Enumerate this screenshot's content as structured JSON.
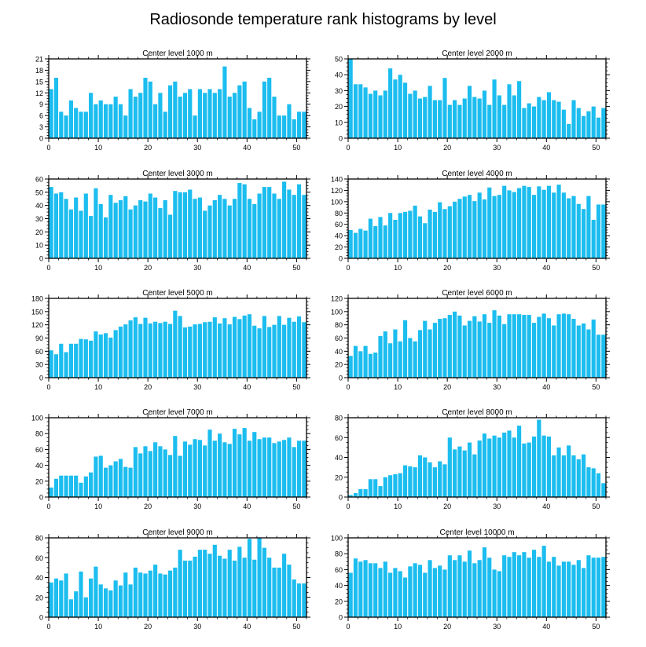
{
  "title": "Radiosonde temperature rank histograms by level",
  "bar_color": "#1cbdef",
  "chart_data": [
    {
      "type": "bar",
      "title": "Center level 1000 m",
      "x": [
        0,
        1,
        2,
        3,
        4,
        5,
        6,
        7,
        8,
        9,
        10,
        11,
        12,
        13,
        14,
        15,
        16,
        17,
        18,
        19,
        20,
        21,
        22,
        23,
        24,
        25,
        26,
        27,
        28,
        29,
        30,
        31,
        32,
        33,
        34,
        35,
        36,
        37,
        38,
        39,
        40,
        41,
        42,
        43,
        44,
        45,
        46,
        47,
        48,
        49,
        50,
        51
      ],
      "values": [
        13,
        16,
        7,
        6,
        10,
        8,
        7,
        7,
        12,
        9,
        10,
        9,
        9,
        11,
        9,
        6,
        13,
        11,
        12,
        16,
        15,
        9,
        12,
        7,
        14,
        15,
        11,
        12,
        13,
        6,
        13,
        12,
        13,
        12,
        13,
        19,
        11,
        12,
        14,
        15,
        8,
        5,
        7,
        15,
        16,
        11,
        6,
        6,
        9,
        5,
        7,
        7
      ],
      "xlim": [
        0,
        52
      ],
      "ylim": [
        0,
        21
      ],
      "yticks": [
        0,
        3,
        6,
        9,
        12,
        15,
        18,
        21
      ],
      "xticks": [
        0,
        10,
        20,
        30,
        40,
        50
      ],
      "xlabel": "",
      "ylabel": ""
    },
    {
      "type": "bar",
      "title": "Center level 2000 m",
      "x": [
        0,
        1,
        2,
        3,
        4,
        5,
        6,
        7,
        8,
        9,
        10,
        11,
        12,
        13,
        14,
        15,
        16,
        17,
        18,
        19,
        20,
        21,
        22,
        23,
        24,
        25,
        26,
        27,
        28,
        29,
        30,
        31,
        32,
        33,
        34,
        35,
        36,
        37,
        38,
        39,
        40,
        41,
        42,
        43,
        44,
        45,
        46,
        47,
        48,
        49,
        50,
        51
      ],
      "values": [
        50,
        34,
        34,
        32,
        28,
        30,
        27,
        30,
        44,
        37,
        40,
        35,
        28,
        30,
        25,
        26,
        33,
        24,
        24,
        38,
        21,
        24,
        21,
        25,
        33,
        26,
        25,
        30,
        21,
        37,
        27,
        21,
        34,
        27,
        36,
        19,
        22,
        20,
        26,
        24,
        29,
        24,
        23,
        18,
        9,
        24,
        19,
        14,
        17,
        20,
        13,
        19
      ],
      "xlim": [
        0,
        52
      ],
      "ylim": [
        0,
        50
      ],
      "yticks": [
        0,
        10,
        20,
        30,
        40,
        50
      ],
      "xticks": [
        0,
        10,
        20,
        30,
        40,
        50
      ],
      "xlabel": "",
      "ylabel": ""
    },
    {
      "type": "bar",
      "title": "Center level 3000 m",
      "x": [
        0,
        1,
        2,
        3,
        4,
        5,
        6,
        7,
        8,
        9,
        10,
        11,
        12,
        13,
        14,
        15,
        16,
        17,
        18,
        19,
        20,
        21,
        22,
        23,
        24,
        25,
        26,
        27,
        28,
        29,
        30,
        31,
        32,
        33,
        34,
        35,
        36,
        37,
        38,
        39,
        40,
        41,
        42,
        43,
        44,
        45,
        46,
        47,
        48,
        49,
        50,
        51
      ],
      "values": [
        54,
        49,
        50,
        45,
        37,
        46,
        36,
        49,
        32,
        53,
        41,
        31,
        48,
        42,
        44,
        47,
        37,
        40,
        44,
        43,
        49,
        46,
        38,
        44,
        33,
        51,
        50,
        50,
        52,
        45,
        46,
        36,
        40,
        44,
        48,
        45,
        40,
        45,
        57,
        56,
        45,
        41,
        49,
        54,
        54,
        49,
        45,
        58,
        52,
        48,
        56,
        48
      ],
      "xlim": [
        0,
        52
      ],
      "ylim": [
        0,
        60
      ],
      "yticks": [
        0,
        10,
        20,
        30,
        40,
        50,
        60
      ],
      "xticks": [
        0,
        10,
        20,
        30,
        40,
        50
      ],
      "xlabel": "",
      "ylabel": ""
    },
    {
      "type": "bar",
      "title": "Center level 4000 m",
      "x": [
        0,
        1,
        2,
        3,
        4,
        5,
        6,
        7,
        8,
        9,
        10,
        11,
        12,
        13,
        14,
        15,
        16,
        17,
        18,
        19,
        20,
        21,
        22,
        23,
        24,
        25,
        26,
        27,
        28,
        29,
        30,
        31,
        32,
        33,
        34,
        35,
        36,
        37,
        38,
        39,
        40,
        41,
        42,
        43,
        44,
        45,
        46,
        47,
        48,
        49,
        50,
        51
      ],
      "values": [
        50,
        45,
        52,
        49,
        70,
        57,
        73,
        58,
        80,
        68,
        80,
        82,
        84,
        93,
        74,
        62,
        86,
        82,
        99,
        87,
        92,
        100,
        105,
        109,
        112,
        101,
        116,
        104,
        125,
        110,
        112,
        128,
        120,
        117,
        124,
        128,
        126,
        112,
        127,
        121,
        128,
        116,
        130,
        116,
        106,
        110,
        96,
        87,
        110,
        68,
        95,
        95
      ],
      "xlim": [
        0,
        52
      ],
      "ylim": [
        0,
        140
      ],
      "yticks": [
        0,
        20,
        40,
        60,
        80,
        100,
        120,
        140
      ],
      "xticks": [
        0,
        10,
        20,
        30,
        40,
        50
      ],
      "xlabel": "",
      "ylabel": ""
    },
    {
      "type": "bar",
      "title": "Center level 5000 m",
      "x": [
        0,
        1,
        2,
        3,
        4,
        5,
        6,
        7,
        8,
        9,
        10,
        11,
        12,
        13,
        14,
        15,
        16,
        17,
        18,
        19,
        20,
        21,
        22,
        23,
        24,
        25,
        26,
        27,
        28,
        29,
        30,
        31,
        32,
        33,
        34,
        35,
        36,
        37,
        38,
        39,
        40,
        41,
        42,
        43,
        44,
        45,
        46,
        47,
        48,
        49,
        50,
        51
      ],
      "values": [
        62,
        53,
        77,
        58,
        77,
        77,
        88,
        87,
        84,
        105,
        98,
        101,
        91,
        108,
        116,
        121,
        130,
        137,
        122,
        136,
        123,
        127,
        124,
        127,
        122,
        152,
        140,
        114,
        116,
        121,
        122,
        126,
        127,
        137,
        123,
        135,
        121,
        138,
        133,
        141,
        144,
        118,
        112,
        140,
        115,
        120,
        140,
        120,
        136,
        127,
        139,
        126
      ],
      "xlim": [
        0,
        52
      ],
      "ylim": [
        0,
        180
      ],
      "yticks": [
        0,
        30,
        60,
        90,
        120,
        150,
        180
      ],
      "xticks": [
        0,
        10,
        20,
        30,
        40,
        50
      ],
      "xlabel": "",
      "ylabel": ""
    },
    {
      "type": "bar",
      "title": "Center level 6000 m",
      "x": [
        0,
        1,
        2,
        3,
        4,
        5,
        6,
        7,
        8,
        9,
        10,
        11,
        12,
        13,
        14,
        15,
        16,
        17,
        18,
        19,
        20,
        21,
        22,
        23,
        24,
        25,
        26,
        27,
        28,
        29,
        30,
        31,
        32,
        33,
        34,
        35,
        36,
        37,
        38,
        39,
        40,
        41,
        42,
        43,
        44,
        45,
        46,
        47,
        48,
        49,
        50,
        51
      ],
      "values": [
        33,
        48,
        40,
        48,
        36,
        38,
        63,
        70,
        52,
        73,
        55,
        87,
        60,
        55,
        72,
        86,
        73,
        83,
        89,
        90,
        95,
        100,
        94,
        79,
        86,
        93,
        85,
        96,
        83,
        102,
        94,
        81,
        96,
        96,
        96,
        95,
        95,
        83,
        92,
        97,
        90,
        79,
        96,
        97,
        96,
        89,
        79,
        82,
        73,
        88,
        65,
        65
      ],
      "xlim": [
        0,
        52
      ],
      "ylim": [
        0,
        120
      ],
      "yticks": [
        0,
        20,
        40,
        60,
        80,
        100,
        120
      ],
      "xticks": [
        0,
        10,
        20,
        30,
        40,
        50
      ],
      "xlabel": "",
      "ylabel": ""
    },
    {
      "type": "bar",
      "title": "Center level 7000 m",
      "x": [
        0,
        1,
        2,
        3,
        4,
        5,
        6,
        7,
        8,
        9,
        10,
        11,
        12,
        13,
        14,
        15,
        16,
        17,
        18,
        19,
        20,
        21,
        22,
        23,
        24,
        25,
        26,
        27,
        28,
        29,
        30,
        31,
        32,
        33,
        34,
        35,
        36,
        37,
        38,
        39,
        40,
        41,
        42,
        43,
        44,
        45,
        46,
        47,
        48,
        49,
        50,
        51
      ],
      "values": [
        12,
        23,
        27,
        27,
        27,
        27,
        18,
        26,
        31,
        51,
        52,
        37,
        40,
        45,
        48,
        38,
        37,
        63,
        55,
        64,
        58,
        69,
        64,
        60,
        53,
        77,
        52,
        70,
        66,
        73,
        72,
        65,
        85,
        71,
        80,
        69,
        67,
        86,
        79,
        87,
        71,
        82,
        73,
        75,
        75,
        68,
        70,
        72,
        75,
        63,
        71,
        71
      ],
      "xlim": [
        0,
        52
      ],
      "ylim": [
        0,
        100
      ],
      "yticks": [
        0,
        20,
        40,
        60,
        80,
        100
      ],
      "xticks": [
        0,
        10,
        20,
        30,
        40,
        50
      ],
      "xlabel": "",
      "ylabel": ""
    },
    {
      "type": "bar",
      "title": "Center level 8000 m",
      "x": [
        0,
        1,
        2,
        3,
        4,
        5,
        6,
        7,
        8,
        9,
        10,
        11,
        12,
        13,
        14,
        15,
        16,
        17,
        18,
        19,
        20,
        21,
        22,
        23,
        24,
        25,
        26,
        27,
        28,
        29,
        30,
        31,
        32,
        33,
        34,
        35,
        36,
        37,
        38,
        39,
        40,
        41,
        42,
        43,
        44,
        45,
        46,
        47,
        48,
        49,
        50,
        51
      ],
      "values": [
        2,
        4,
        8,
        8,
        18,
        18,
        11,
        20,
        22,
        23,
        24,
        32,
        31,
        30,
        42,
        40,
        35,
        30,
        36,
        33,
        60,
        48,
        51,
        47,
        55,
        43,
        57,
        64,
        59,
        62,
        60,
        65,
        67,
        60,
        72,
        54,
        55,
        61,
        78,
        62,
        61,
        42,
        50,
        42,
        52,
        42,
        38,
        43,
        30,
        29,
        24,
        14
      ],
      "xlim": [
        0,
        52
      ],
      "ylim": [
        0,
        80
      ],
      "yticks": [
        0,
        20,
        40,
        60,
        80
      ],
      "xticks": [
        0,
        10,
        20,
        30,
        40,
        50
      ],
      "xlabel": "",
      "ylabel": ""
    },
    {
      "type": "bar",
      "title": "Center level 9000 m",
      "x": [
        0,
        1,
        2,
        3,
        4,
        5,
        6,
        7,
        8,
        9,
        10,
        11,
        12,
        13,
        14,
        15,
        16,
        17,
        18,
        19,
        20,
        21,
        22,
        23,
        24,
        25,
        26,
        27,
        28,
        29,
        30,
        31,
        32,
        33,
        34,
        35,
        36,
        37,
        38,
        39,
        40,
        41,
        42,
        43,
        44,
        45,
        46,
        47,
        48,
        49,
        50,
        51
      ],
      "values": [
        35,
        39,
        37,
        44,
        18,
        26,
        46,
        20,
        39,
        51,
        33,
        29,
        27,
        37,
        32,
        45,
        33,
        50,
        45,
        44,
        47,
        53,
        44,
        43,
        47,
        50,
        68,
        57,
        57,
        61,
        68,
        68,
        64,
        73,
        62,
        59,
        68,
        57,
        71,
        60,
        79,
        58,
        80,
        70,
        60,
        50,
        50,
        64,
        53,
        38,
        34,
        34
      ],
      "xlim": [
        0,
        52
      ],
      "ylim": [
        0,
        80
      ],
      "yticks": [
        0,
        20,
        40,
        60,
        80
      ],
      "xticks": [
        0,
        10,
        20,
        30,
        40,
        50
      ],
      "xlabel": "",
      "ylabel": ""
    },
    {
      "type": "bar",
      "title": "Center level 10000 m",
      "x": [
        0,
        1,
        2,
        3,
        4,
        5,
        6,
        7,
        8,
        9,
        10,
        11,
        12,
        13,
        14,
        15,
        16,
        17,
        18,
        19,
        20,
        21,
        22,
        23,
        24,
        25,
        26,
        27,
        28,
        29,
        30,
        31,
        32,
        33,
        34,
        35,
        36,
        37,
        38,
        39,
        40,
        41,
        42,
        43,
        44,
        45,
        46,
        47,
        48,
        49,
        50,
        51
      ],
      "values": [
        56,
        74,
        70,
        72,
        68,
        68,
        62,
        70,
        56,
        62,
        58,
        50,
        64,
        68,
        66,
        56,
        72,
        62,
        65,
        60,
        78,
        72,
        78,
        70,
        84,
        68,
        72,
        88,
        75,
        60,
        58,
        78,
        76,
        82,
        78,
        82,
        75,
        85,
        76,
        90,
        70,
        76,
        65,
        70,
        70,
        66,
        72,
        62,
        78,
        75,
        75,
        76
      ],
      "xlim": [
        0,
        52
      ],
      "ylim": [
        0,
        100
      ],
      "yticks": [
        0,
        20,
        40,
        60,
        80,
        100
      ],
      "xticks": [
        0,
        10,
        20,
        30,
        40,
        50
      ],
      "xlabel": "",
      "ylabel": ""
    }
  ]
}
